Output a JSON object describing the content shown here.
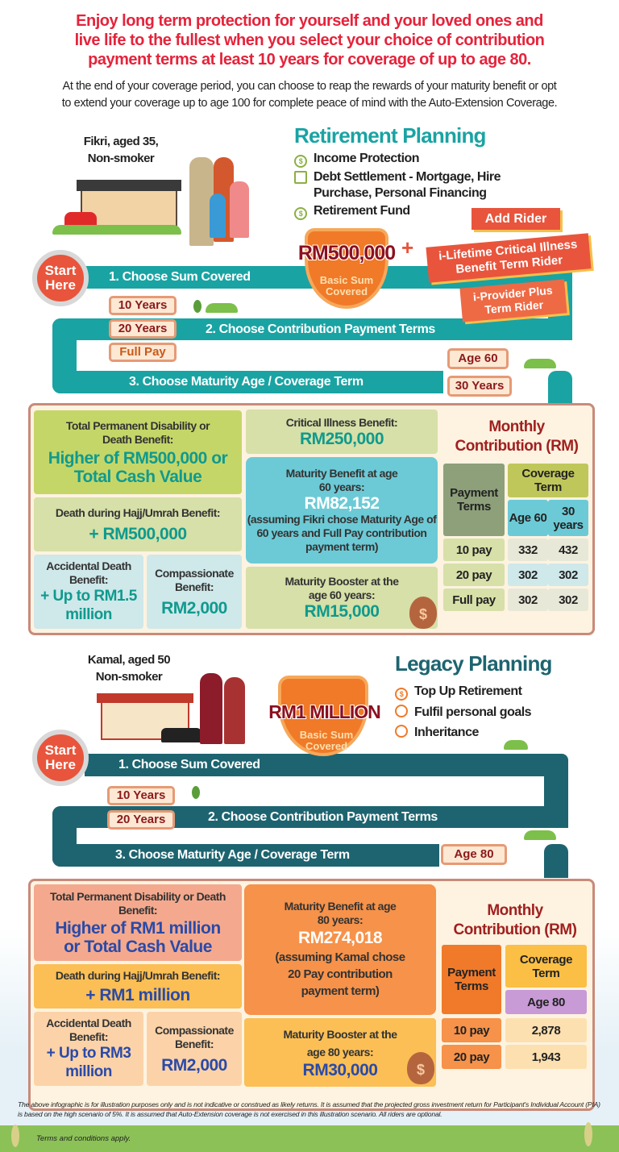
{
  "headline": [
    "Enjoy long term protection for yourself and your loved ones and",
    "live life to the fullest when you select your choice of contribution",
    "payment terms at least 10 years for coverage of up to age 80."
  ],
  "subheadline": [
    "At the end of your coverage period, you can choose to reap the rewards of your maturity benefit or opt",
    "to extend your coverage up to age 100 for complete peace of mind with the Auto-Extension Coverage."
  ],
  "colors": {
    "headline": "#e5233b",
    "teal": "#1aa3a3",
    "dark_teal": "#1d6470",
    "start": "#e8553c",
    "value_teal": "#0f9a8e",
    "value_blue": "#2a4aa8"
  },
  "retirement": {
    "persona": [
      "Fikri, aged 35,",
      "Non-smoker"
    ],
    "title": "Retirement Planning",
    "goals": [
      {
        "icon": "shield-dollar-icon",
        "label": "Income Protection"
      },
      {
        "icon": "document-icon",
        "label": "Debt Settlement - Mortgage, Hire Purchase, Personal Financing"
      },
      {
        "icon": "money-bag-icon",
        "label": "Retirement Fund"
      }
    ],
    "start": "Start Here",
    "step1": "1. Choose Sum Covered",
    "step2": "2. Choose Contribution Payment Terms",
    "step3": "3. Choose Maturity Age / Coverage Term",
    "sum": "RM500,000",
    "sum_label": "Basic Sum Covered",
    "plus": "+",
    "add_rider": "Add Rider",
    "rider1": "i-Lifetime Critical Illness Benefit Term Rider",
    "rider2": "i-Provider Plus Term Rider",
    "terms": [
      "10 Years",
      "20 Years",
      "Full Pay"
    ],
    "maturity": [
      "Age 60",
      "30 Years"
    ],
    "tpd_label": "Total Permanent Disability or Death Benefit:",
    "tpd_value": "Higher of RM500,000 or Total Cash Value",
    "hajj_label": "Death during Hajj/Umrah Benefit:",
    "hajj_value": "+ RM500,000",
    "acc_label": "Accidental Death Benefit:",
    "acc_value": "+ Up to RM1.5 million",
    "comp_label": "Compassionate Benefit:",
    "comp_value": "RM2,000",
    "ci_label": "Critical Illness Benefit:",
    "ci_value": "RM250,000",
    "mat_label": "Maturity Benefit at age 60 years:",
    "mat_value": "RM82,152",
    "mat_note": "(assuming Fikri chose Maturity Age of 60 years and Full Pay contribution payment term)",
    "boost_label": "Maturity Booster at the age 60 years:",
    "boost_value": "RM15,000",
    "table": {
      "title": "Monthly Contribution (RM)",
      "col_payment": "Payment Terms",
      "col_coverage": "Coverage Term",
      "sub": [
        "Age 60",
        "30 years"
      ],
      "rows": [
        {
          "term": "10 pay",
          "v": [
            "332",
            "432"
          ]
        },
        {
          "term": "20 pay",
          "v": [
            "302",
            "302"
          ]
        },
        {
          "term": "Full pay",
          "v": [
            "302",
            "302"
          ]
        }
      ]
    }
  },
  "legacy": {
    "persona": [
      "Kamal, aged 50",
      "Non-smoker"
    ],
    "title": "Legacy Planning",
    "goals": [
      {
        "icon": "coins-icon",
        "label": "Top Up Retirement"
      },
      {
        "icon": "target-icon",
        "label": "Fulfil personal goals"
      },
      {
        "icon": "person-icon",
        "label": "Inheritance"
      }
    ],
    "start": "Start Here",
    "step1": "1. Choose Sum Covered",
    "step2": "2. Choose Contribution Payment Terms",
    "step3": "3. Choose Maturity Age / Coverage Term",
    "sum": "RM1 MILLION",
    "sum_label": "Basic Sum Covered",
    "terms": [
      "10 Years",
      "20 Years"
    ],
    "maturity": [
      "Age 80"
    ],
    "tpd_label": "Total Permanent Disability or Death Benefit:",
    "tpd_value": "Higher of RM1 million or Total Cash Value",
    "hajj_label": "Death during Hajj/Umrah Benefit:",
    "hajj_value": "+ RM1 million",
    "acc_label": "Accidental Death Benefit:",
    "acc_value": "+ Up to RM3 million",
    "comp_label": "Compassionate Benefit:",
    "comp_value": "RM2,000",
    "mat_label": "Maturity Benefit at age 80 years:",
    "mat_value": "RM274,018",
    "mat_note": "(assuming Kamal chose 20 Pay contribution payment term)",
    "boost_label": "Maturity Booster at the age 80 years:",
    "boost_value": "RM30,000",
    "table": {
      "title": "Monthly Contribution (RM)",
      "col_payment": "Payment Terms",
      "col_coverage": "Coverage Term",
      "sub": [
        "Age 80"
      ],
      "rows": [
        {
          "term": "10 pay",
          "v": [
            "2,878"
          ]
        },
        {
          "term": "20 pay",
          "v": [
            "1,943"
          ]
        }
      ]
    }
  },
  "disclaimer": "The above infographic is for illustration purposes only and is not indicative or construed as likely returns. It is assumed that the projected gross investment return for Participant's Individual Account (PIA) is based on the high scenario of 5%. It is assumed that Auto-Extension coverage is not exercised in this illustration scenario. All riders are optional.",
  "terms_apply": "Terms and conditions apply.",
  "currency_symbol": "$"
}
